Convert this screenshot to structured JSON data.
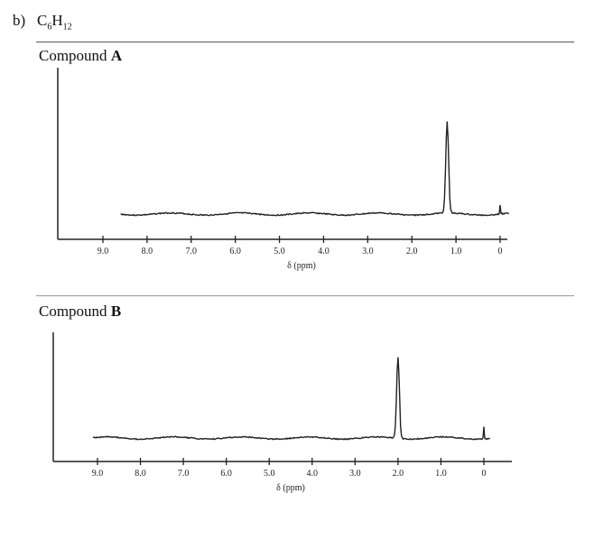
{
  "problem": {
    "label": "b)",
    "formula_element1": "C",
    "formula_sub1": "6",
    "formula_element2": "H",
    "formula_sub2": "12"
  },
  "chart_data": [
    {
      "type": "line",
      "title_prefix": "Compound ",
      "title_letter": "A",
      "xlabel": "δ (ppm)",
      "x_reversed": true,
      "xlim": [
        9.0,
        0
      ],
      "xticks": [
        "9.0",
        "8.0",
        "7.0",
        "6.0",
        "5.0",
        "4.0",
        "3.0",
        "2.0",
        "1.0",
        "0"
      ],
      "baseline_range_ppm": [
        8.6,
        -0.2
      ],
      "peaks": [
        {
          "ppm": 1.2,
          "relative_height": 1.0,
          "type": "singlet"
        },
        {
          "ppm": 0.0,
          "relative_height": 0.1,
          "type": "TMS reference"
        }
      ],
      "grid": false,
      "line_color": "#222222"
    },
    {
      "type": "line",
      "title_prefix": "Compound ",
      "title_letter": "B",
      "xlabel": "δ (ppm)",
      "x_reversed": true,
      "xlim": [
        9.0,
        0
      ],
      "xticks": [
        "9.0",
        "8.0",
        "7.0",
        "6.0",
        "5.0",
        "4.0",
        "3.0",
        "2.0",
        "1.0",
        "0"
      ],
      "baseline_range_ppm": [
        9.1,
        -0.15
      ],
      "peaks": [
        {
          "ppm": 2.0,
          "relative_height": 1.0,
          "type": "singlet"
        },
        {
          "ppm": 0.0,
          "relative_height": 0.15,
          "type": "TMS reference"
        }
      ],
      "grid": false,
      "line_color": "#222222"
    }
  ]
}
